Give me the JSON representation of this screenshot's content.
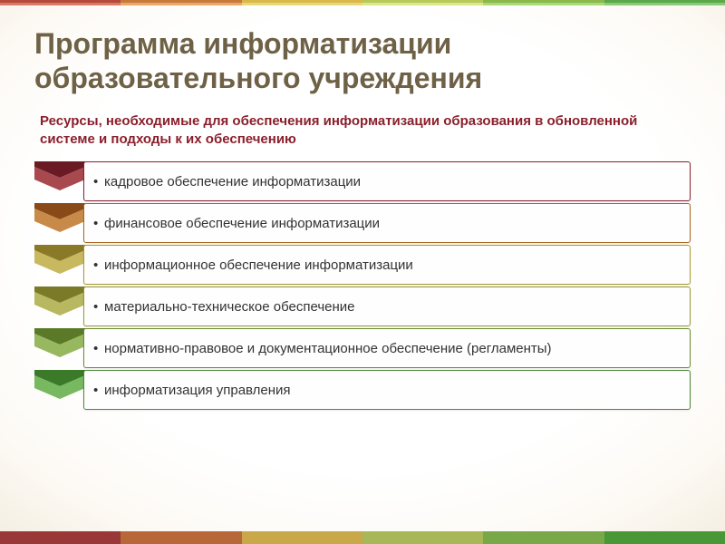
{
  "title": "Программа информатизации образовательного учреждения",
  "subtitle": "Ресурсы, необходимые для обеспечения информатизации образования в обновленной системе и подходы к их обеспечению",
  "items": [
    {
      "text": "кадровое обеспечение информатизации",
      "chevron_dark": "#6a1a22",
      "chevron_light": "#a84950",
      "border": "#8a1f2c"
    },
    {
      "text": "финансовое обеспечение информатизации",
      "chevron_dark": "#8a4a18",
      "chevron_light": "#c88a48",
      "border": "#a8651e"
    },
    {
      "text": "информационное обеспечение информатизации",
      "chevron_dark": "#8a7a28",
      "chevron_light": "#c8b860",
      "border": "#a89832"
    },
    {
      "text": "материально-техническое обеспечение",
      "chevron_dark": "#7a7a28",
      "chevron_light": "#b8b860",
      "border": "#989832"
    },
    {
      "text": "нормативно-правовое и документационное обеспечение (регламенты)",
      "chevron_dark": "#5a7a28",
      "chevron_light": "#98b860",
      "border": "#6a8a32"
    },
    {
      "text": "информатизация управления",
      "chevron_dark": "#3a7a28",
      "chevron_light": "#78b860",
      "border": "#4a8a32"
    }
  ],
  "top_stripe_row1": [
    "#b54a3a",
    "#c87a3a",
    "#d8b84a",
    "#b8c85a",
    "#8ab84a",
    "#5aa84a"
  ],
  "top_stripe_row2": [
    "#d87a6a",
    "#e8aa6a",
    "#e8d87a",
    "#d8e88a",
    "#aad87a",
    "#8ac87a"
  ],
  "bottom_stripe": [
    "#9a3838",
    "#b86838",
    "#c8a848",
    "#a8b858",
    "#78a848",
    "#489838"
  ]
}
